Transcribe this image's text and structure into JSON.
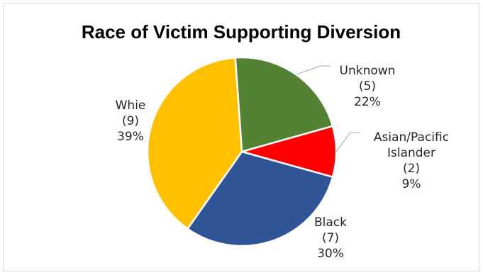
{
  "chart_data": {
    "type": "pie",
    "title": "Race of Victim Supporting Diversion",
    "categories": [
      "Unknown",
      "Asian/Pacific Islander",
      "Black",
      "Whie"
    ],
    "values": [
      5,
      2,
      7,
      9
    ],
    "percentages": [
      "22%",
      "9%",
      "30%",
      "39%"
    ],
    "count_labels": [
      "(5)",
      "(2)",
      "(7)",
      "(9)"
    ],
    "label_lines": [
      [
        "Unknown",
        "(5)",
        "22%"
      ],
      [
        "Asian/Pacific",
        "Islander",
        "(2)",
        "9%"
      ],
      [
        "Black",
        "(7)",
        "30%"
      ],
      [
        "Whie",
        "(9)",
        "39%"
      ]
    ],
    "colors": [
      "#548235",
      "#ff0000",
      "#2f5597",
      "#ffc000"
    ],
    "legend": "none",
    "grid": false
  }
}
